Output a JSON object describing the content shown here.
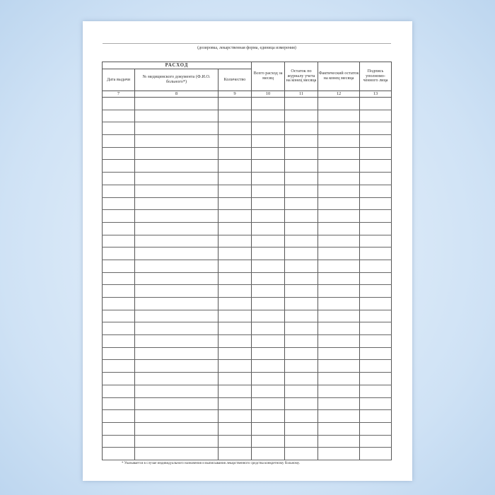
{
  "subtitle": "(дозировка, лекарственная форма, единица измерения)",
  "table": {
    "group_header": "РАСХОД",
    "columns": [
      "Дата выдачи",
      "№ медицинского документа (Ф.И.О. больного*)",
      "Количество",
      "Всего расход за месяц",
      "Остаток по журналу учета на конец месяца",
      "Фактический остаток на конец месяца",
      "Подпись уполномо-ченного лица"
    ],
    "numbers": [
      "7",
      "8",
      "9",
      "10",
      "11",
      "12",
      "13"
    ],
    "empty_rows": 29
  },
  "footnote": "* Указывается в случае индивидуального назначения и выписывания лекарственного средства конкретному больному."
}
